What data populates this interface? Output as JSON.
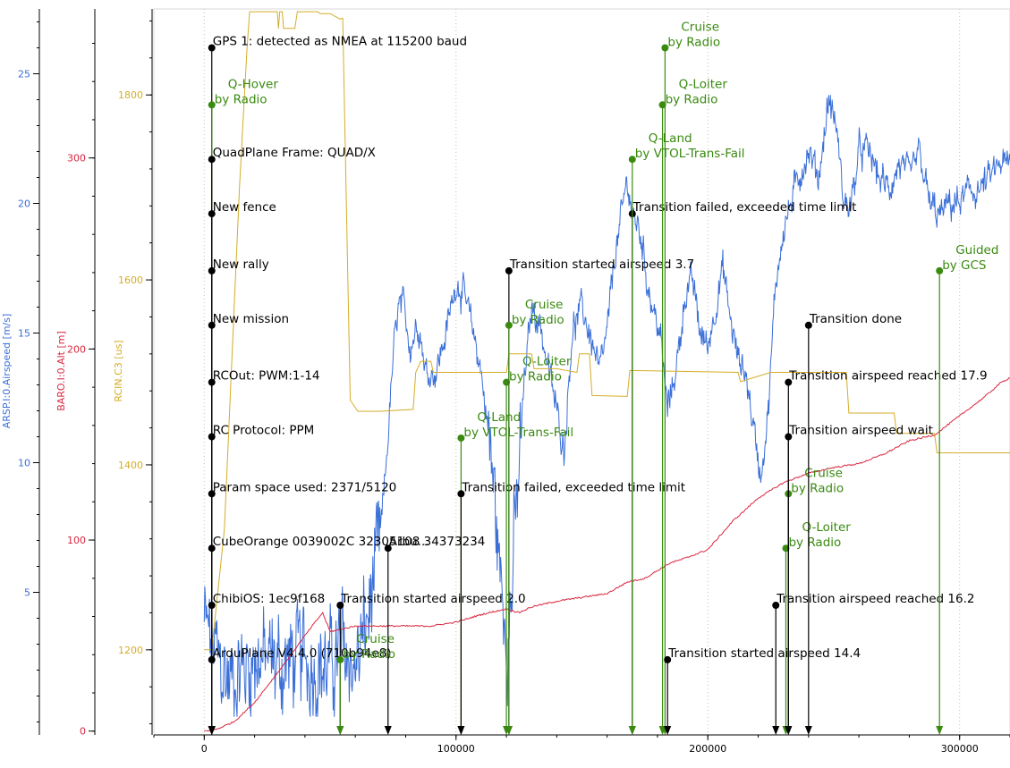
{
  "chart_data": {
    "type": "line",
    "grid": true,
    "x_axis": {
      "range": [
        -20000,
        320000
      ],
      "ticks": [
        0,
        100000,
        200000,
        300000
      ],
      "tick_labels": [
        "0",
        "100000",
        "200000",
        "300000"
      ]
    },
    "y_axes": [
      {
        "title": "ARSP.I:0.Airspeed [m/s]",
        "color": "#3a6fd8",
        "range": [
          -0.5,
          27.5
        ],
        "ticks": [
          5,
          10,
          15,
          20,
          25
        ],
        "tick_labels": [
          "5",
          "10",
          "15",
          "20",
          "25"
        ]
      },
      {
        "title": "BARO.I:0.Alt [m]",
        "color": "#d9263e",
        "range": [
          -2,
          378
        ],
        "ticks": [
          0,
          100,
          200,
          300
        ],
        "tick_labels": [
          "0",
          "100",
          "200",
          "300"
        ]
      },
      {
        "title": "RCIN.C3 [us]",
        "color": "#d4ad28",
        "range": [
          1108,
          1893
        ],
        "ticks": [
          1200,
          1400,
          1600,
          1800
        ],
        "tick_labels": [
          "1200",
          "1400",
          "1600",
          "1800"
        ]
      }
    ],
    "series": [
      {
        "name": "ARSP.I:0.Airspeed [m/s]",
        "axis": 0,
        "color": "#3a6fd8",
        "noise": 1.5,
        "points": [
          [
            0,
            3.8
          ],
          [
            5000,
            2.5
          ],
          [
            10000,
            1.5
          ],
          [
            20000,
            2.5
          ],
          [
            30000,
            2.2
          ],
          [
            40000,
            2.5
          ],
          [
            50000,
            2
          ],
          [
            55000,
            3
          ],
          [
            60000,
            2
          ],
          [
            65000,
            4
          ],
          [
            70000,
            7
          ],
          [
            73000,
            11
          ],
          [
            75000,
            14
          ],
          [
            77000,
            16
          ],
          [
            79000,
            16
          ],
          [
            82000,
            14.5
          ],
          [
            85000,
            15.5
          ],
          [
            88000,
            13.5
          ],
          [
            92000,
            13.5
          ],
          [
            96000,
            15
          ],
          [
            100000,
            17
          ],
          [
            103000,
            16.5
          ],
          [
            107000,
            15
          ],
          [
            110000,
            13.5
          ],
          [
            113000,
            11
          ],
          [
            115000,
            9
          ],
          [
            118000,
            5
          ],
          [
            121000,
            3.5
          ],
          [
            124000,
            8
          ],
          [
            127000,
            13
          ],
          [
            130000,
            16
          ],
          [
            133000,
            15.5
          ],
          [
            137000,
            13.5
          ],
          [
            140000,
            12
          ],
          [
            143000,
            10.5
          ],
          [
            146000,
            15
          ],
          [
            150000,
            16
          ],
          [
            153000,
            15
          ],
          [
            157000,
            13.5
          ],
          [
            160000,
            15
          ],
          [
            163000,
            18
          ],
          [
            165000,
            19
          ],
          [
            168000,
            21
          ],
          [
            170000,
            19.5
          ],
          [
            173000,
            19
          ],
          [
            176000,
            17
          ],
          [
            178000,
            16
          ],
          [
            181000,
            15
          ],
          [
            184000,
            12
          ],
          [
            188000,
            14
          ],
          [
            191000,
            16.5
          ],
          [
            194000,
            17
          ],
          [
            197000,
            15
          ],
          [
            200000,
            14.5
          ],
          [
            203000,
            16
          ],
          [
            206000,
            17.5
          ],
          [
            209000,
            15.5
          ],
          [
            212000,
            14
          ],
          [
            215000,
            13.5
          ],
          [
            218000,
            11.5
          ],
          [
            221000,
            9.5
          ],
          [
            224000,
            12
          ],
          [
            227000,
            17
          ],
          [
            230000,
            19
          ],
          [
            233000,
            20
          ],
          [
            236000,
            21
          ],
          [
            240000,
            22
          ],
          [
            244000,
            21
          ],
          [
            248000,
            24
          ],
          [
            251000,
            23
          ],
          [
            254000,
            20
          ],
          [
            257000,
            20
          ],
          [
            260000,
            22
          ],
          [
            264000,
            22
          ],
          [
            268000,
            21
          ],
          [
            272000,
            20.5
          ],
          [
            276000,
            21.5
          ],
          [
            280000,
            21
          ],
          [
            284000,
            22
          ],
          [
            288000,
            20
          ],
          [
            292000,
            19.5
          ],
          [
            296000,
            20
          ],
          [
            300000,
            20
          ],
          [
            304000,
            20.5
          ],
          [
            308000,
            20.5
          ],
          [
            312000,
            21
          ],
          [
            316000,
            21.5
          ],
          [
            320000,
            21.5
          ]
        ]
      },
      {
        "name": "BARO.I:0.Alt [m]",
        "axis": 1,
        "color": "#d9263e",
        "noise": 0.8,
        "points": [
          [
            0,
            0
          ],
          [
            5000,
            1
          ],
          [
            12000,
            5
          ],
          [
            20000,
            15
          ],
          [
            30000,
            32
          ],
          [
            40000,
            50
          ],
          [
            47000,
            62
          ],
          [
            50000,
            52
          ],
          [
            60000,
            55
          ],
          [
            70000,
            55
          ],
          [
            80000,
            55
          ],
          [
            90000,
            55
          ],
          [
            100000,
            57
          ],
          [
            110000,
            61
          ],
          [
            120000,
            64
          ],
          [
            125000,
            62
          ],
          [
            130000,
            65
          ],
          [
            140000,
            68
          ],
          [
            150000,
            70
          ],
          [
            160000,
            72
          ],
          [
            168000,
            78
          ],
          [
            175000,
            80
          ],
          [
            185000,
            88
          ],
          [
            190000,
            90
          ],
          [
            200000,
            95
          ],
          [
            210000,
            110
          ],
          [
            220000,
            122
          ],
          [
            230000,
            130
          ],
          [
            240000,
            135
          ],
          [
            250000,
            138
          ],
          [
            260000,
            140
          ],
          [
            270000,
            145
          ],
          [
            280000,
            152
          ],
          [
            290000,
            155
          ],
          [
            300000,
            165
          ],
          [
            310000,
            175
          ],
          [
            316000,
            182
          ],
          [
            320000,
            185
          ]
        ]
      },
      {
        "name": "RCIN.C3 [us]",
        "axis": 2,
        "color": "#d4ad28",
        "noise": 0,
        "points": [
          [
            0,
            1200
          ],
          [
            3000,
            1200
          ],
          [
            8000,
            1330
          ],
          [
            14000,
            1700
          ],
          [
            17000,
            1850
          ],
          [
            18000,
            1890
          ],
          [
            20000,
            1890
          ],
          [
            29000,
            1890
          ],
          [
            29500,
            1872
          ],
          [
            30000,
            1890
          ],
          [
            31000,
            1890
          ],
          [
            31500,
            1872
          ],
          [
            36000,
            1872
          ],
          [
            37000,
            1890
          ],
          [
            45000,
            1890
          ],
          [
            46000,
            1888
          ],
          [
            50000,
            1888
          ],
          [
            54000,
            1882
          ],
          [
            55000,
            1883
          ],
          [
            58000,
            1470
          ],
          [
            61000,
            1458
          ],
          [
            70000,
            1458
          ],
          [
            83000,
            1460
          ],
          [
            84000,
            1500
          ],
          [
            86000,
            1512
          ],
          [
            90000,
            1512
          ],
          [
            91000,
            1500
          ],
          [
            120000,
            1500
          ],
          [
            121000,
            1520
          ],
          [
            130000,
            1520
          ],
          [
            131000,
            1504
          ],
          [
            140000,
            1504
          ],
          [
            148000,
            1500
          ],
          [
            149000,
            1520
          ],
          [
            153000,
            1520
          ],
          [
            154000,
            1475
          ],
          [
            168000,
            1474
          ],
          [
            169000,
            1502
          ],
          [
            212000,
            1500
          ],
          [
            213000,
            1490
          ],
          [
            225000,
            1500
          ],
          [
            244000,
            1500
          ],
          [
            250000,
            1500
          ],
          [
            255000,
            1500
          ],
          [
            256000,
            1456
          ],
          [
            274000,
            1456
          ],
          [
            275000,
            1434
          ],
          [
            290000,
            1434
          ],
          [
            291000,
            1413
          ],
          [
            300000,
            1413
          ],
          [
            320000,
            1413
          ]
        ]
      }
    ],
    "events": [
      {
        "x": 3000,
        "y": 26.0,
        "label": "GPS 1: detected as NMEA at 115200 baud",
        "kind": "message"
      },
      {
        "x": 3000,
        "y": 23.8,
        "label": "Q-Hover\nby Radio",
        "kind": "mode"
      },
      {
        "x": 3000,
        "y": 21.7,
        "label": "QuadPlane Frame: QUAD/X",
        "kind": "message"
      },
      {
        "x": 3000,
        "y": 19.6,
        "label": "New fence",
        "kind": "message"
      },
      {
        "x": 3000,
        "y": 17.4,
        "label": "New rally",
        "kind": "message"
      },
      {
        "x": 3000,
        "y": 15.3,
        "label": "New mission",
        "kind": "message"
      },
      {
        "x": 3000,
        "y": 13.1,
        "label": "RCOut: PWM:1-14",
        "kind": "message"
      },
      {
        "x": 3000,
        "y": 11.0,
        "label": "RC Protocol: PPM",
        "kind": "message"
      },
      {
        "x": 3000,
        "y": 8.8,
        "label": "Param space used: 2371/5120",
        "kind": "message"
      },
      {
        "x": 3000,
        "y": 6.7,
        "label": "CubeOrange 0039002C 32305108 34373234",
        "kind": "message"
      },
      {
        "x": 3000,
        "y": 4.5,
        "label": "ChibiOS: 1ec9f168",
        "kind": "message"
      },
      {
        "x": 3000,
        "y": 2.4,
        "label": "ArduPlane V4.4.0 (710b94e8)",
        "kind": "message"
      },
      {
        "x": 54000,
        "y": 4.5,
        "label": "Transition started airspeed 2.0",
        "kind": "message"
      },
      {
        "x": 54000,
        "y": 2.4,
        "label": "Cruise\nby Radio",
        "kind": "mode"
      },
      {
        "x": 73000,
        "y": 6.7,
        "label": "Arbu...",
        "kind": "message"
      },
      {
        "x": 102000,
        "y": 10.95,
        "label": "Q-Land\nby VTOL-Trans-Fail",
        "kind": "mode"
      },
      {
        "x": 102000,
        "y": 8.8,
        "label": "Transition failed, exceeded time limit",
        "kind": "message"
      },
      {
        "x": 120000,
        "y": 13.1,
        "label": "Q-Loiter\nby Radio",
        "kind": "mode"
      },
      {
        "x": 121000,
        "y": 17.4,
        "label": "Transition started airspeed 3.7",
        "kind": "message"
      },
      {
        "x": 121000,
        "y": 15.3,
        "label": "Cruise\nby Radio",
        "kind": "mode"
      },
      {
        "x": 170000,
        "y": 19.6,
        "label": "Transition failed, exceeded time limit",
        "kind": "message"
      },
      {
        "x": 170000,
        "y": 21.7,
        "label": "Q-Land\nby VTOL-Trans-Fail",
        "kind": "mode"
      },
      {
        "x": 182000,
        "y": 23.8,
        "label": "Q-Loiter\nby Radio",
        "kind": "mode"
      },
      {
        "x": 183000,
        "y": 26.0,
        "label": "Cruise\nby Radio",
        "kind": "mode"
      },
      {
        "x": 184000,
        "y": 2.4,
        "label": "Transition started airspeed 14.4",
        "kind": "message"
      },
      {
        "x": 227000,
        "y": 4.5,
        "label": "Transition airspeed reached 16.2",
        "kind": "message"
      },
      {
        "x": 231000,
        "y": 6.7,
        "label": "Q-Loiter\nby Radio",
        "kind": "mode"
      },
      {
        "x": 232000,
        "y": 8.8,
        "label": "Cruise\nby Radio",
        "kind": "mode"
      },
      {
        "x": 232000,
        "y": 11.0,
        "label": "Transition airspeed wait",
        "kind": "message"
      },
      {
        "x": 232000,
        "y": 13.1,
        "label": "Transition airspeed reached 17.9",
        "kind": "message"
      },
      {
        "x": 240000,
        "y": 15.3,
        "label": "Transition done",
        "kind": "message"
      },
      {
        "x": 292000,
        "y": 17.4,
        "label": "Guided\nby GCS",
        "kind": "mode"
      }
    ],
    "colors": {
      "message": "#000000",
      "mode": "#3a8a10",
      "grid": "#c0c0c0"
    }
  }
}
